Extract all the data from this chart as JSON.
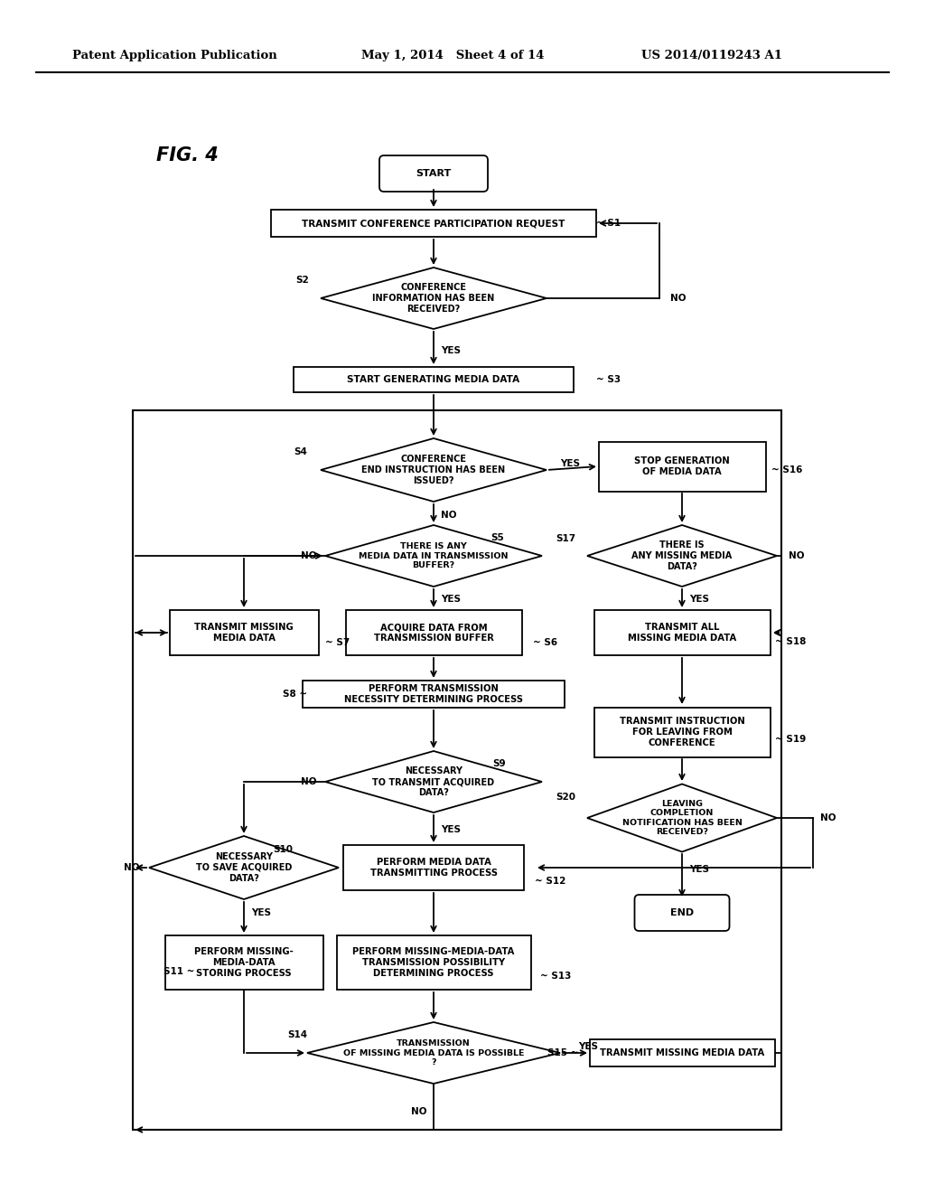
{
  "header_left": "Patent Application Publication",
  "header_mid": "May 1, 2014   Sheet 4 of 14",
  "header_right": "US 2014/0119243 A1",
  "fig_label": "FIG. 4",
  "bg_color": "#ffffff"
}
